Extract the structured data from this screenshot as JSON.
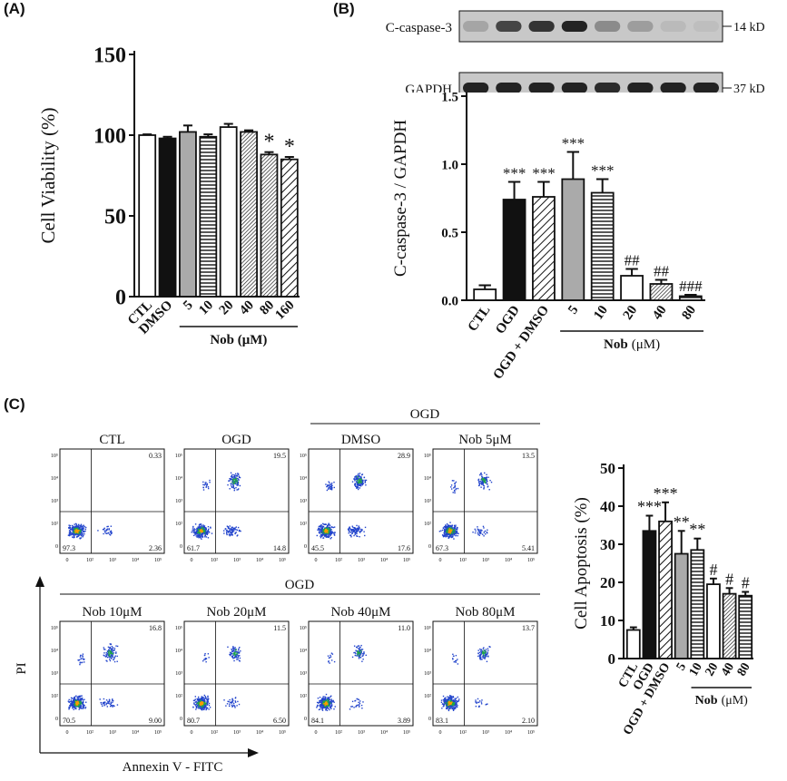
{
  "panels": {
    "a": "(A)",
    "b": "(B)",
    "c": "(C)"
  },
  "colors": {
    "black": "#111111",
    "gray": "#aaaaaa",
    "white": "#ffffff",
    "blot_bg": "#c8c8c8",
    "band": "#1a1a1a"
  },
  "chart_data": [
    {
      "id": "A",
      "type": "bar",
      "ylabel": "Cell Viability (%)",
      "ylim": [
        0,
        150
      ],
      "yticks": [
        0,
        50,
        100,
        150
      ],
      "categories": [
        "CTL",
        "DMSO",
        "5",
        "10",
        "20",
        "40",
        "80",
        "160"
      ],
      "values": [
        100,
        98,
        102,
        99,
        105,
        102,
        88,
        85
      ],
      "errors": [
        0.5,
        1,
        4,
        1.5,
        2,
        1,
        1.5,
        1.5
      ],
      "fills": [
        "white",
        "black",
        "gray",
        "hlines",
        "white",
        "dense",
        "dense",
        "diag"
      ],
      "annotations": [
        "",
        "",
        "",
        "",
        "",
        "",
        "*",
        "*"
      ],
      "group_label": "Nob (μM)"
    },
    {
      "id": "B",
      "type": "bar",
      "ylabel": "C-caspase-3 / GAPDH",
      "ylim": [
        0,
        1.5
      ],
      "yticks": [
        "0.0",
        "0.5",
        "1.0",
        "1.5"
      ],
      "categories": [
        "CTL",
        "OGD",
        "OGD + DMSO",
        "5",
        "10",
        "20",
        "40",
        "80"
      ],
      "values": [
        0.08,
        0.74,
        0.76,
        0.89,
        0.79,
        0.18,
        0.12,
        0.03
      ],
      "errors": [
        0.03,
        0.13,
        0.11,
        0.2,
        0.1,
        0.05,
        0.03,
        0.01
      ],
      "fills": [
        "white",
        "black",
        "diag",
        "gray",
        "hlines",
        "white",
        "dense",
        "hlines"
      ],
      "annotations": [
        "",
        "***",
        "***",
        "***",
        "***",
        "##",
        "##",
        "###"
      ],
      "group_label_bold": "Nob",
      "group_label_unit": "(μM)"
    },
    {
      "id": "C",
      "type": "bar",
      "ylabel": "Cell Apoptosis (%)",
      "ylim": [
        0,
        50
      ],
      "yticks": [
        0,
        10,
        20,
        30,
        40,
        50
      ],
      "categories": [
        "CTL",
        "OGD",
        "OGD + DMSO",
        "5",
        "10",
        "20",
        "40",
        "80"
      ],
      "values": [
        7.5,
        33.5,
        36,
        27.5,
        28.5,
        19.5,
        17,
        16.5
      ],
      "errors": [
        0.7,
        4,
        5,
        6,
        3,
        1.5,
        1.5,
        1
      ],
      "fills": [
        "white",
        "black",
        "diag",
        "gray",
        "hlines",
        "white",
        "dense",
        "hlines"
      ],
      "annotations": [
        "",
        "***",
        "***",
        "**",
        "**",
        "#",
        "#",
        "#"
      ],
      "group_label_bold": "Nob",
      "group_label_unit": "(μM)"
    }
  ],
  "blot": {
    "rows": [
      {
        "label": "C-caspase-3",
        "size": "14 kD",
        "intensity": [
          0.2,
          0.75,
          0.85,
          0.95,
          0.35,
          0.25,
          0.08,
          0.05
        ]
      },
      {
        "label": "GAPDH",
        "size": "37 kD",
        "intensity": [
          0.95,
          0.95,
          0.95,
          0.95,
          0.9,
          0.95,
          0.95,
          0.95
        ]
      }
    ]
  },
  "flow": {
    "row1_titles": [
      "CTL",
      "OGD",
      "DMSO",
      "Nob 5μM"
    ],
    "row2_titles": [
      "Nob 10μM",
      "Nob 20μM",
      "Nob 40μM",
      "Nob 80μM"
    ],
    "ogd_label_top": "OGD",
    "ogd_label_bottom": "OGD",
    "x_axis_label": "Annexin V - FITC",
    "y_axis_label": "PI",
    "tick_labels": [
      "0",
      "10²",
      "10³",
      "10⁴",
      "10⁵"
    ],
    "plots": [
      {
        "q": [
          "0.33",
          "97.3",
          "2.36"
        ],
        "ur": 0.02,
        "lr": 0.1,
        "ul": 0.0
      },
      {
        "q": [
          "19.5",
          "61.7",
          "14.8"
        ],
        "ur": 0.3,
        "lr": 0.25,
        "ul": 0.05
      },
      {
        "q": [
          "28.9",
          "45.5",
          "17.6"
        ],
        "ur": 0.4,
        "lr": 0.3,
        "ul": 0.08
      },
      {
        "q": [
          "13.5",
          "67.3",
          "5.41"
        ],
        "ur": 0.25,
        "lr": 0.12,
        "ul": 0.05
      },
      {
        "q": [
          "16.8",
          "70.5",
          "9.00"
        ],
        "ur": 0.28,
        "lr": 0.15,
        "ul": 0.05
      },
      {
        "q": [
          "11.5",
          "80.7",
          "6.50"
        ],
        "ur": 0.22,
        "lr": 0.12,
        "ul": 0.03
      },
      {
        "q": [
          "11.0",
          "84.1",
          "3.89"
        ],
        "ur": 0.2,
        "lr": 0.08,
        "ul": 0.03
      },
      {
        "q": [
          "13.7",
          "83.1",
          "2.10"
        ],
        "ur": 0.22,
        "lr": 0.06,
        "ul": 0.03
      }
    ]
  }
}
